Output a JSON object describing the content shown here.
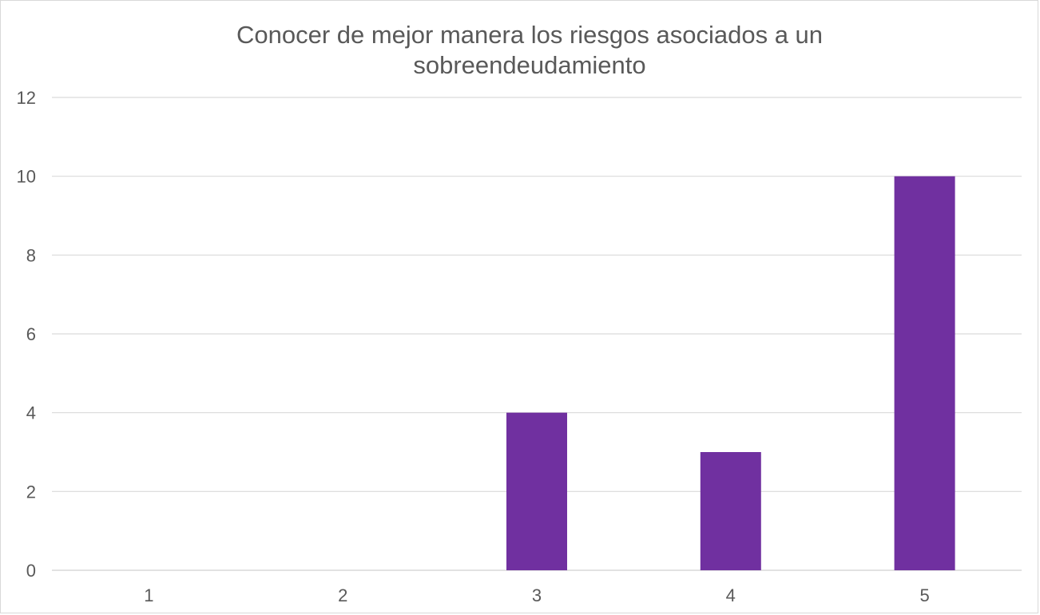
{
  "chart_data": {
    "type": "bar",
    "title": "Conocer de mejor manera los riesgos asociados a un sobreendeudamiento",
    "categories": [
      "1",
      "2",
      "3",
      "4",
      "5"
    ],
    "values": [
      0,
      0,
      4,
      3,
      10
    ],
    "ylim": [
      0,
      12
    ],
    "yticks": [
      0,
      2,
      4,
      6,
      8,
      10,
      12
    ],
    "grid": true,
    "bar_color": "#7030a0",
    "grid_color": "#d9d9d9",
    "text_color": "#595959"
  }
}
